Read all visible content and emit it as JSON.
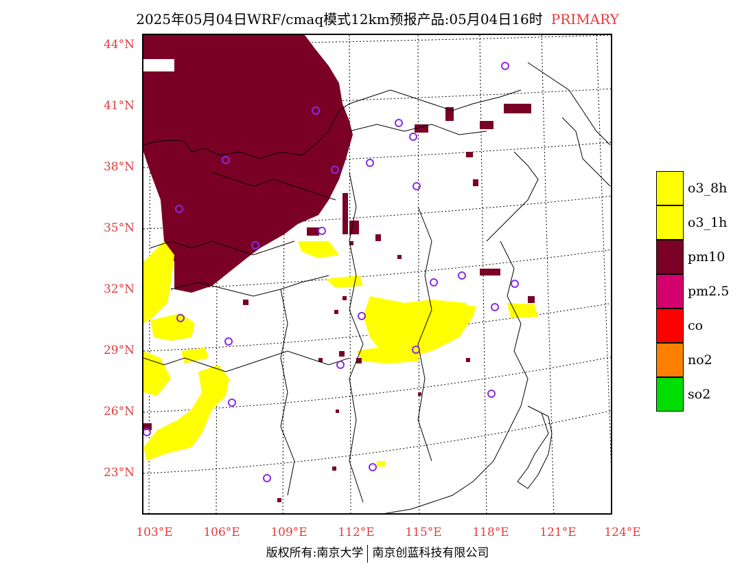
{
  "title": {
    "main": "2025年05月04日WRF/cmaq模式12km预报产品:05月04日16时",
    "tag": "PRIMARY"
  },
  "axes": {
    "lat_labels": [
      "44°N",
      "41°N",
      "38°N",
      "35°N",
      "32°N",
      "29°N",
      "26°N",
      "23°N"
    ],
    "lon_labels": [
      "103°E",
      "106°E",
      "109°E",
      "112°E",
      "115°E",
      "118°E",
      "121°E",
      "124°E"
    ]
  },
  "legend": [
    {
      "label": "o3_8h",
      "color": "#ffff00"
    },
    {
      "label": "o3_1h",
      "color": "#ffff00"
    },
    {
      "label": "pm10",
      "color": "#7a0026"
    },
    {
      "label": "pm2.5",
      "color": "#d4006e"
    },
    {
      "label": "co",
      "color": "#ff0000"
    },
    {
      "label": "no2",
      "color": "#ff7f00"
    },
    {
      "label": "so2",
      "color": "#00dd00"
    }
  ],
  "footer": {
    "left": "版权所有:南京大学",
    "right": "南京创蓝科技有限公司"
  },
  "colors": {
    "accent": "#e23a3a",
    "pm10": "#7a0026",
    "ozone": "#ffff00",
    "station": "#8a2be2"
  }
}
